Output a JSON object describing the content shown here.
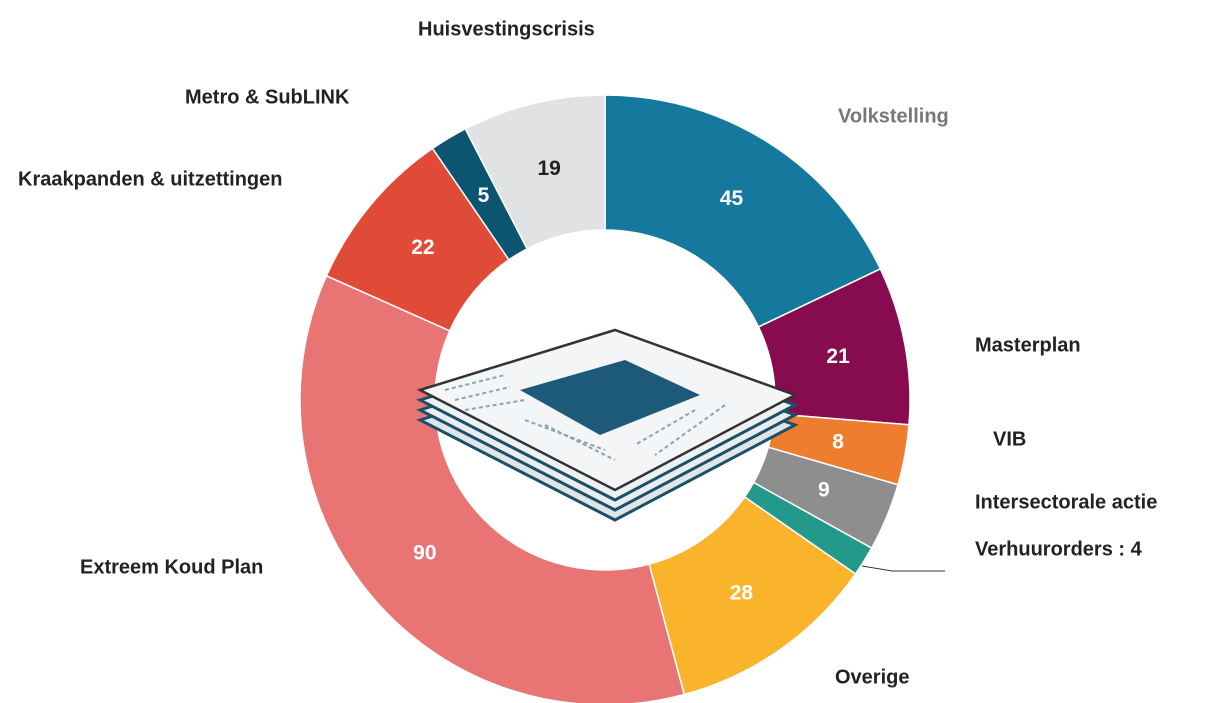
{
  "chart_data": {
    "type": "donut",
    "categories": [
      "Volkstelling",
      "Masterplan",
      "VIB",
      "Intersectorale actie",
      "Verhuurorders : 4",
      "Overige",
      "Extreem Koud Plan",
      "Kraakpanden & uitzettingen",
      "Metro & SubLINK",
      "Huisvestingscrisis"
    ],
    "values": [
      45,
      21,
      8,
      9,
      4,
      28,
      90,
      22,
      5,
      19
    ],
    "colors": [
      "#15799e",
      "#860b4f",
      "#ef7d2f",
      "#8e8e8e",
      "#22998a",
      "#f9b42c",
      "#e87474",
      "#e04b38",
      "#0b5570",
      "#e1e2e4"
    ],
    "label_colors": [
      "#777777",
      "#222222",
      "#222222",
      "#222222",
      "#222222",
      "#222222",
      "#222222",
      "#222222",
      "#222222",
      "#222222"
    ],
    "value_label_colors": [
      "#ffffff",
      "#ffffff",
      "#ffffff",
      "#ffffff",
      "#ffffff",
      "#ffffff",
      "#ffffff",
      "#ffffff",
      "#ffffff",
      "#222222"
    ]
  }
}
